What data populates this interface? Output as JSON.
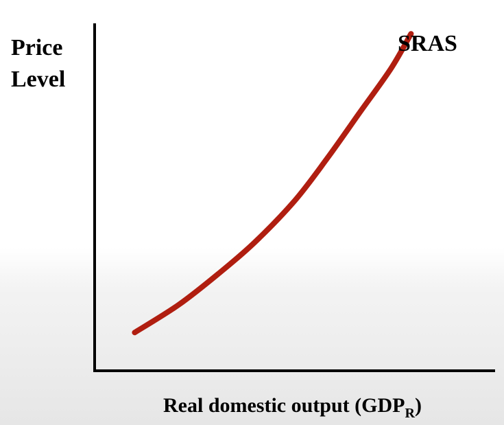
{
  "chart_data": {
    "type": "line",
    "title": "",
    "ylabel_lines": [
      "Price",
      "Level"
    ],
    "xlabel": {
      "main": "Real domestic output (GDP",
      "subscript": "R",
      "close": ")"
    },
    "ticks": "none",
    "grid": false,
    "xlim": [
      0,
      100
    ],
    "ylim": [
      0,
      100
    ],
    "series": [
      {
        "name": "SRAS",
        "color": "#b01e10",
        "x": [
          10,
          21,
          31,
          40,
          50,
          58,
          66,
          74,
          79
        ],
        "y": [
          11,
          19,
          28,
          37,
          49,
          61,
          74,
          87,
          97
        ]
      }
    ]
  },
  "colors": {
    "axis": "#000000",
    "curve": "#b01e10"
  }
}
